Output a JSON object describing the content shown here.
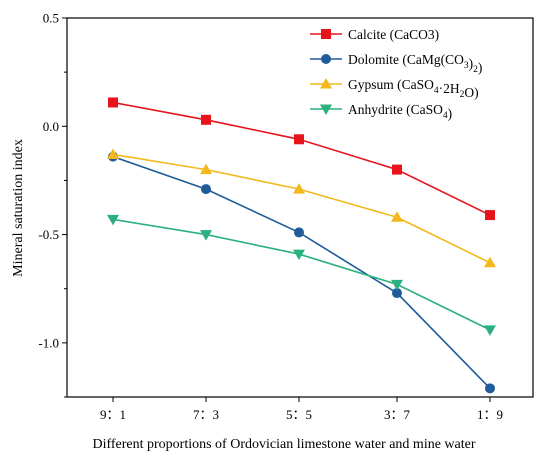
{
  "chart_data": {
    "type": "line",
    "xlabel": "Different proportions of Ordovician limestone water and mine water",
    "ylabel": "Mineral saturation index",
    "categories": [
      "9：1",
      "7：3",
      "5：5",
      "3：7",
      "1：9"
    ],
    "ylim": [
      -1.25,
      0.5
    ],
    "yticks": [
      {
        "value": 0.5,
        "label": "0.5"
      },
      {
        "value": 0.0,
        "label": "0.0"
      },
      {
        "value": -0.5,
        "label": "-0.5"
      },
      {
        "value": -1.0,
        "label": "-1.0"
      }
    ],
    "grid": false,
    "legend_position": "top-right",
    "series": [
      {
        "name": "Calcite (CaCO3)",
        "legend_parts": [
          {
            "t": "Calcite (CaCO3)"
          }
        ],
        "color": "#e8141c",
        "marker": "square",
        "values": [
          0.11,
          0.03,
          -0.06,
          -0.2,
          -0.41
        ]
      },
      {
        "name": "Dolomite (CaMg(CO3)2)",
        "legend_parts": [
          {
            "t": "Dolomite (CaMg(CO"
          },
          {
            "t": "3",
            "sub": true
          },
          {
            "t": ")"
          },
          {
            "t": "2",
            "sub": true
          },
          {
            "t": ")"
          }
        ],
        "color": "#1f5c99",
        "marker": "circle",
        "values": [
          -0.14,
          -0.29,
          -0.49,
          -0.77,
          -1.21
        ]
      },
      {
        "name": "Gypsum (CaSO4·2H2O)",
        "legend_parts": [
          {
            "t": "Gypsum (CaSO"
          },
          {
            "t": "4",
            "sub": true
          },
          {
            "t": "·2H"
          },
          {
            "t": "2",
            "sub": true
          },
          {
            "t": "O)"
          }
        ],
        "color": "#f2b81c",
        "marker": "triangle-up",
        "values": [
          -0.13,
          -0.2,
          -0.29,
          -0.42,
          -0.63
        ]
      },
      {
        "name": "Anhydrite (CaSO4)",
        "legend_parts": [
          {
            "t": "Anhydrite (CaSO"
          },
          {
            "t": "4",
            "sub": true
          },
          {
            "t": ")"
          }
        ],
        "color": "#2bb07f",
        "marker": "triangle-down",
        "values": [
          -0.43,
          -0.5,
          -0.59,
          -0.73,
          -0.94
        ]
      }
    ]
  }
}
